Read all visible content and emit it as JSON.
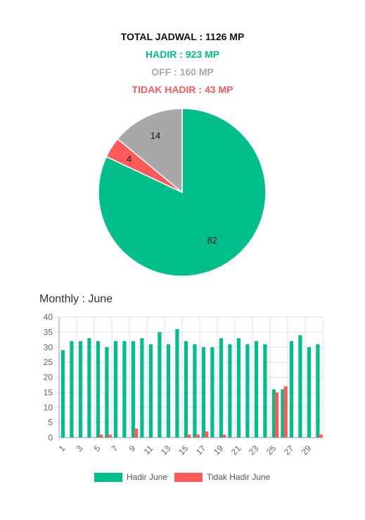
{
  "summary": {
    "total": "TOTAL JADWAL : 1126 MP",
    "hadir": "HADIR : 923 MP",
    "off": "OFF : 160 MP",
    "tidak_hadir": "TIDAK HADIR : 43 MP"
  },
  "colors": {
    "hadir": "#00bf8a",
    "tidak_hadir": "#ff5a5a",
    "off": "#a8a8a8",
    "total": "#111111"
  },
  "chart_data": [
    {
      "type": "pie",
      "slices": [
        {
          "label": "82",
          "value": 82,
          "color": "#00bf8a"
        },
        {
          "label": "4",
          "value": 4,
          "color": "#ff5a5a"
        },
        {
          "label": "14",
          "value": 14,
          "color": "#a8a8a8"
        }
      ]
    },
    {
      "type": "bar",
      "title": "Monthly : June",
      "categories": [
        "1",
        "2",
        "3",
        "4",
        "5",
        "6",
        "7",
        "8",
        "9",
        "10",
        "11",
        "12",
        "13",
        "14",
        "15",
        "16",
        "17",
        "18",
        "19",
        "20",
        "21",
        "22",
        "23",
        "24",
        "25",
        "26",
        "27",
        "28",
        "29",
        "30"
      ],
      "x_tick_labels": [
        "1",
        "3",
        "5",
        "7",
        "9",
        "11",
        "13",
        "15",
        "17",
        "19",
        "21",
        "23",
        "25",
        "27",
        "29"
      ],
      "ylim": [
        0,
        40
      ],
      "y_ticks": [
        0,
        5,
        10,
        15,
        20,
        25,
        30,
        35,
        40
      ],
      "grid": true,
      "legend_position": "bottom",
      "series": [
        {
          "name": "Hadir June",
          "color": "#00bf8a",
          "values": [
            29,
            32,
            32,
            33,
            32,
            30,
            32,
            32,
            32,
            33,
            31,
            35,
            31,
            36,
            32,
            31,
            30,
            30,
            33,
            31,
            33,
            31,
            32,
            31,
            16,
            16,
            32,
            34,
            30,
            31
          ]
        },
        {
          "name": "Tidak Hadir June",
          "color": "#ff5a5a",
          "values": [
            0,
            0,
            0,
            0,
            1,
            1,
            0,
            0,
            3,
            0,
            0,
            0,
            0,
            0,
            1,
            1,
            2,
            0,
            1,
            0,
            0,
            0,
            0,
            0,
            15,
            17,
            0,
            0,
            0,
            1
          ]
        }
      ]
    }
  ]
}
